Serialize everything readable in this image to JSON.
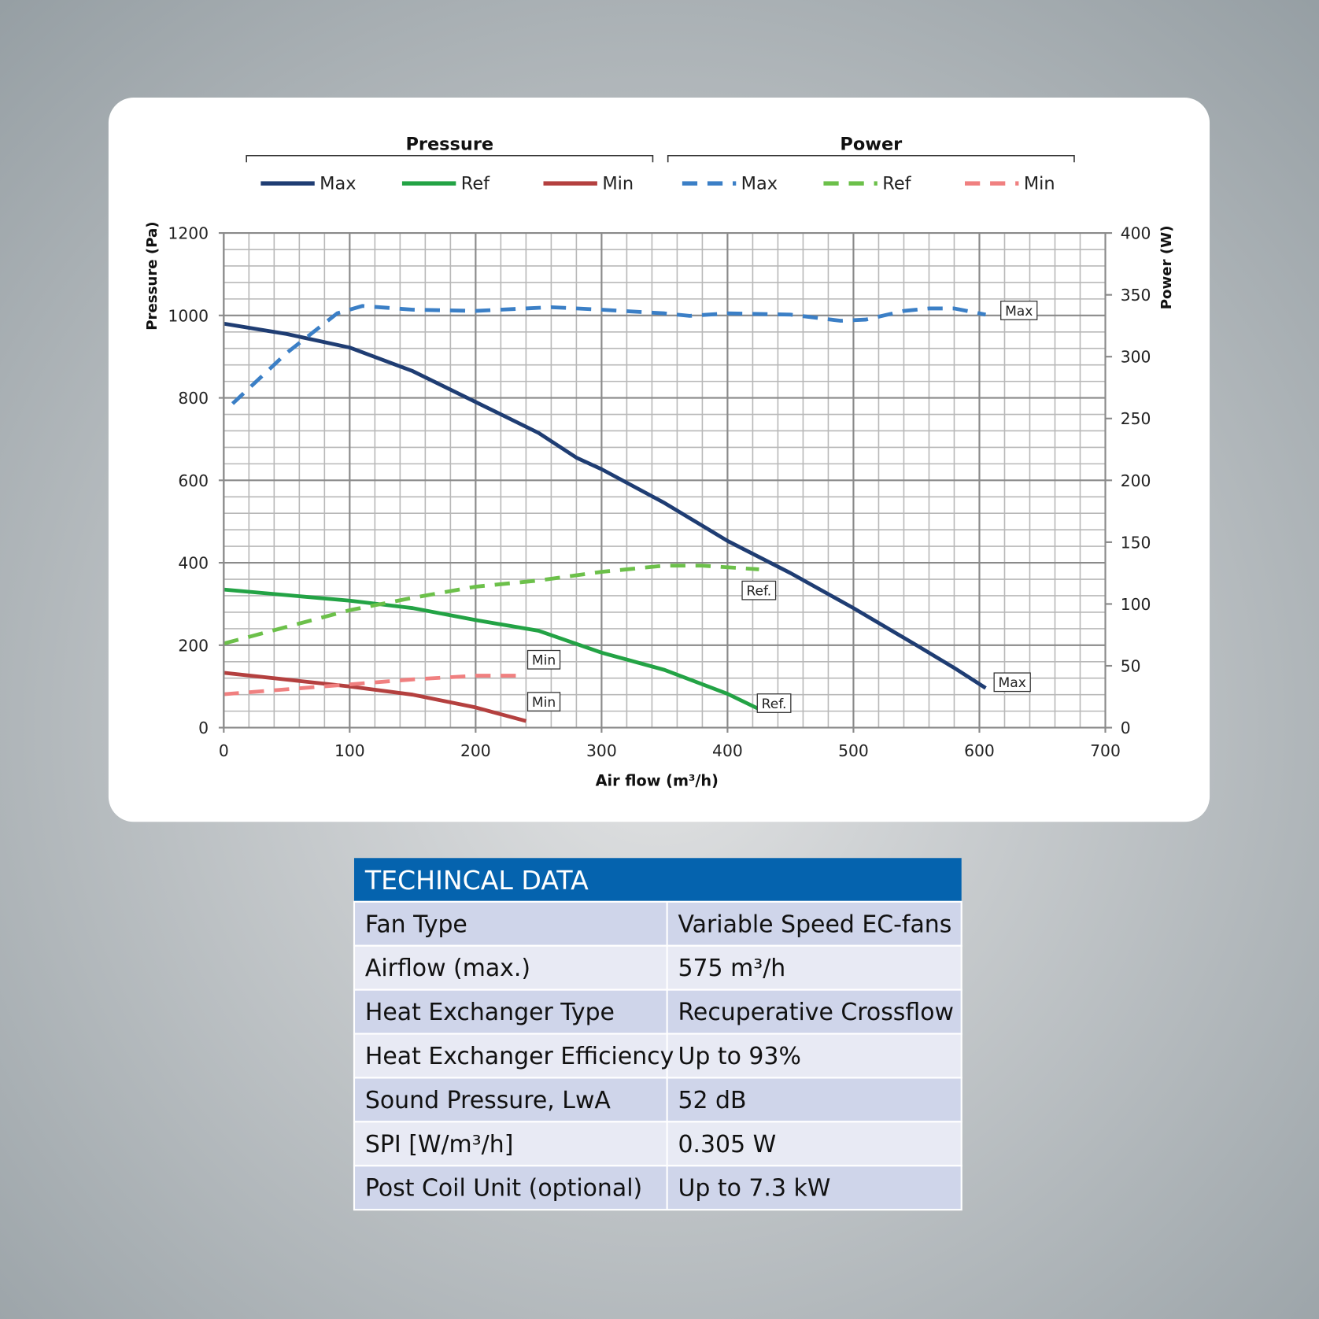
{
  "chart_data": {
    "type": "line",
    "legend_groups": [
      "Pressure",
      "Power"
    ],
    "xlabel": "Air flow (m³/h)",
    "ylabel": "Pressure (Pa)",
    "y2label": "Power (W)",
    "xlim": [
      0,
      700
    ],
    "xticks": [
      0,
      100,
      200,
      300,
      400,
      500,
      600,
      700
    ],
    "ylim": [
      0,
      1200
    ],
    "yticks": [
      0,
      200,
      400,
      600,
      800,
      1000,
      1200
    ],
    "y2lim": [
      0,
      400
    ],
    "y2ticks": [
      0,
      50,
      100,
      150,
      200,
      250,
      300,
      350,
      400
    ],
    "grid": true,
    "series": [
      {
        "name": "Max",
        "color": "#1f3d73",
        "axis": "y",
        "end_label": "Max",
        "x": [
          0,
          50,
          100,
          150,
          200,
          250,
          280,
          300,
          350,
          400,
          450,
          500,
          550,
          580,
          605
        ],
        "values": [
          980,
          955,
          922,
          865,
          790,
          715,
          655,
          627,
          545,
          453,
          375,
          290,
          200,
          145,
          96
        ]
      },
      {
        "name": "Ref",
        "color": "#23a345",
        "axis": "y",
        "end_label": "Ref.",
        "x": [
          0,
          100,
          150,
          200,
          250,
          300,
          350,
          400,
          425
        ],
        "values": [
          335,
          308,
          290,
          261,
          235,
          182,
          140,
          82,
          45
        ]
      },
      {
        "name": "Min",
        "color": "#b4403f",
        "axis": "y",
        "end_label": "Min",
        "x": [
          0,
          100,
          150,
          200,
          240
        ],
        "values": [
          133,
          100,
          80,
          49,
          16
        ]
      },
      {
        "name": "Max",
        "color": "#3b7fc6",
        "axis": "y2",
        "dash": true,
        "end_label": "Max",
        "x": [
          7,
          50,
          90,
          110,
          150,
          200,
          260,
          300,
          350,
          370,
          400,
          450,
          490,
          510,
          540,
          560,
          580,
          605
        ],
        "values": [
          262,
          303,
          335,
          341,
          338,
          337,
          340,
          338,
          335,
          333,
          335,
          334,
          329,
          330,
          337,
          339,
          339,
          334
        ]
      },
      {
        "name": "Ref",
        "color": "#6cc04a",
        "axis": "y2",
        "dash": true,
        "end_label": "Ref.",
        "x": [
          0,
          100,
          150,
          200,
          250,
          300,
          350,
          380,
          425
        ],
        "values": [
          68,
          95,
          105,
          114,
          119,
          126,
          131,
          131,
          128
        ]
      },
      {
        "name": "Min",
        "color": "#f08080",
        "axis": "y2",
        "dash": true,
        "end_label": "Min",
        "x": [
          0,
          100,
          150,
          200,
          240
        ],
        "values": [
          27,
          35,
          39,
          42,
          42
        ]
      }
    ]
  },
  "table": {
    "title": "TECHINCAL DATA",
    "rows": [
      [
        "Fan Type",
        "Variable Speed EC-fans"
      ],
      [
        "Airflow (max.)",
        "575 m³/h"
      ],
      [
        "Heat Exchanger Type",
        "Recuperative Crossflow"
      ],
      [
        "Heat Exchanger Efficiency",
        "Up to 93%"
      ],
      [
        "Sound Pressure, LwA",
        "52 dB"
      ],
      [
        "SPI [W/m³/h]",
        "0.305 W"
      ],
      [
        "Post Coil Unit (optional)",
        "Up to 7.3 kW"
      ]
    ]
  }
}
